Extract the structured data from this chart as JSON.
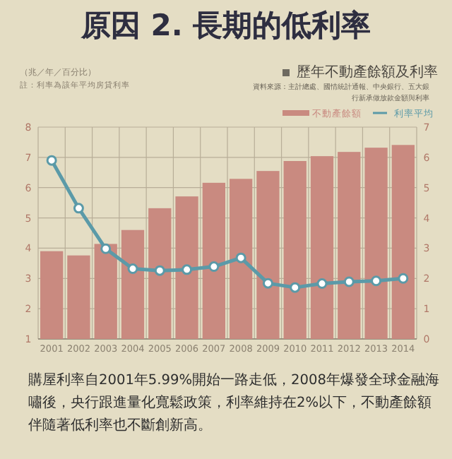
{
  "chart_data": {
    "type": "bar",
    "title": "原因 2. 長期的低利率",
    "subtitle": "歷年不動產餘額及利率",
    "annotations": [
      "（兆／年／百分比）",
      "註：利率為該年平均房貸利率",
      "資料來源：主計總處、國情統計通報、中央銀行、五大銀行新承做放款金額與利率",
      "購屋利率自2001年5.99%開始一路走低，2008年爆發全球金融海嘯後，央行跟進量化寬鬆政策，利率維持在2%以下，不動產餘額伴隨著低利率也不斷創新高。"
    ],
    "categories": [
      "2001",
      "2002",
      "2003",
      "2004",
      "2005",
      "2006",
      "2007",
      "2008",
      "2009",
      "2010",
      "2011",
      "2012",
      "2013",
      "2014"
    ],
    "series": [
      {
        "name": "不動產餘額",
        "color": "#c98a80",
        "values": [
          3.9,
          3.76,
          4.14,
          4.6,
          5.32,
          5.71,
          6.16,
          6.29,
          6.55,
          6.88,
          7.04,
          7.18,
          7.32,
          7.41
        ]
      },
      {
        "name": "利率平均",
        "type": "line",
        "axis": "y2",
        "color": "#5b9aa8",
        "marker": "circle",
        "values": [
          5.9,
          4.32,
          2.98,
          2.32,
          2.26,
          2.29,
          2.39,
          2.68,
          1.84,
          1.7,
          1.83,
          1.89,
          1.92,
          2.0
        ]
      }
    ],
    "ylim": [
      1,
      8
    ],
    "yticks": [
      1,
      2,
      3,
      4,
      5,
      6,
      7,
      8
    ],
    "y2lim": [
      0,
      7
    ],
    "y2ticks": [
      0,
      1,
      2,
      3,
      4,
      5,
      6,
      7
    ],
    "grid": true,
    "legend": "top right"
  }
}
